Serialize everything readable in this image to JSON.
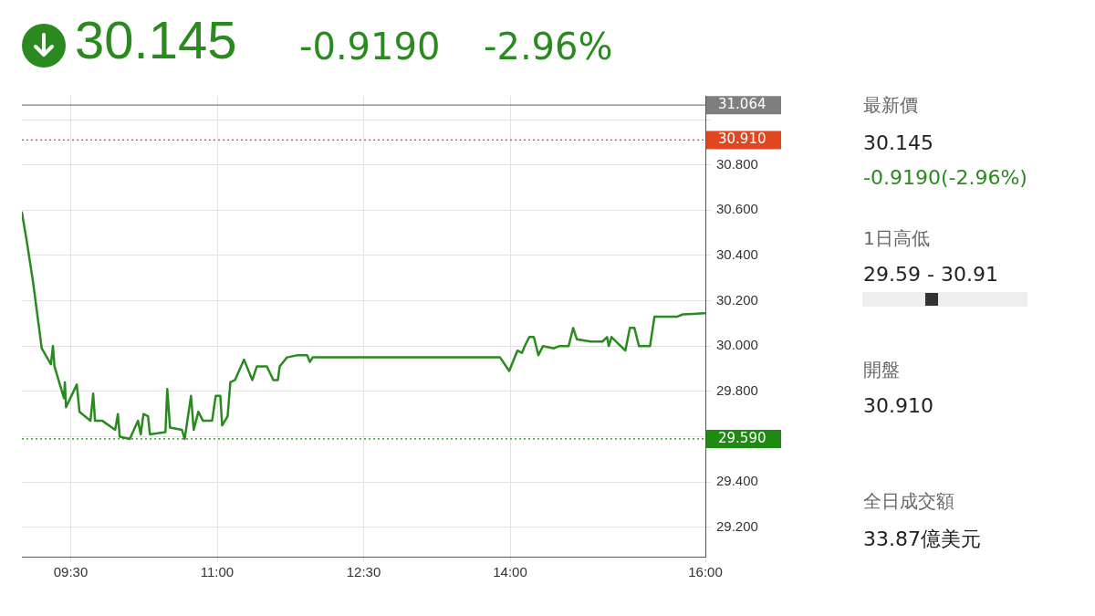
{
  "chart_data": {
    "type": "line",
    "title": "30.145",
    "annotations": [
      "-0.9190",
      "-2.96%",
      "最新價",
      "30.145",
      "-0.9190(-2.96%)",
      "1日高低",
      "29.59 - 30.91",
      "開盤",
      "30.910",
      "全日成交額",
      "33.87億美元"
    ],
    "x": [
      9.0,
      9.047,
      9.112,
      9.203,
      9.297,
      9.318,
      9.334,
      9.431,
      9.44,
      9.452,
      9.562,
      9.59,
      9.702,
      9.73,
      9.749,
      9.824,
      9.955,
      9.983,
      10.002,
      10.105,
      10.189,
      10.217,
      10.245,
      10.292,
      10.311,
      10.47,
      10.489,
      10.517,
      10.639,
      10.667,
      10.732,
      10.76,
      10.807,
      10.854,
      10.948,
      10.985,
      11.032,
      11.051,
      11.107,
      11.135,
      11.182,
      11.275,
      11.36,
      11.406,
      11.509,
      11.575,
      11.622,
      11.64,
      11.715,
      11.828,
      11.921,
      11.949,
      11.978,
      13.897,
      13.991,
      14.075,
      14.122,
      14.15,
      14.197,
      14.243,
      14.29,
      14.337,
      14.449,
      14.506,
      14.599,
      14.646,
      14.684,
      14.824,
      14.946,
      14.993,
      15.011,
      15.039,
      15.18,
      15.227,
      15.273,
      15.32,
      15.433,
      15.479,
      15.713,
      15.77,
      15.994
    ],
    "series": [
      {
        "color": "#2a8a1f",
        "values": [
          30.59,
          30.47,
          30.29,
          29.99,
          29.92,
          30.0,
          29.91,
          29.77,
          29.84,
          29.73,
          29.83,
          29.71,
          29.67,
          29.79,
          29.67,
          29.67,
          29.63,
          29.7,
          29.6,
          29.59,
          29.67,
          29.61,
          29.7,
          29.69,
          29.61,
          29.62,
          29.81,
          29.64,
          29.63,
          29.59,
          29.78,
          29.63,
          29.71,
          29.67,
          29.67,
          29.78,
          29.78,
          29.65,
          29.69,
          29.84,
          29.85,
          29.94,
          29.85,
          29.91,
          29.91,
          29.85,
          29.85,
          29.91,
          29.95,
          29.96,
          29.96,
          29.93,
          29.95,
          29.95,
          29.89,
          29.98,
          29.97,
          30.0,
          30.04,
          30.04,
          29.96,
          30.0,
          29.99,
          30.0,
          30.0,
          30.08,
          30.03,
          30.02,
          30.02,
          30.04,
          30.0,
          30.04,
          29.98,
          30.08,
          30.08,
          30.0,
          30.0,
          30.13,
          30.13,
          30.14,
          30.145
        ]
      }
    ],
    "xlim": [
      9,
      16
    ],
    "xticks": [
      {
        "value": 9.5,
        "label": "09:30"
      },
      {
        "value": 11,
        "label": "11:00"
      },
      {
        "value": 12.5,
        "label": "12:30"
      },
      {
        "value": 14,
        "label": "14:00"
      },
      {
        "value": 16,
        "label": "16:00"
      }
    ],
    "ylim": [
      29.07,
      31.105
    ],
    "yticks": [
      {
        "value": 29.2,
        "label": "29.200"
      },
      {
        "value": 29.4,
        "label": "29.400"
      },
      {
        "value": 29.6,
        "label": null
      },
      {
        "value": 29.8,
        "label": "29.800"
      },
      {
        "value": 30.0,
        "label": "30.000"
      },
      {
        "value": 30.2,
        "label": "30.200"
      },
      {
        "value": 30.4,
        "label": "30.400"
      },
      {
        "value": 30.6,
        "label": "30.600"
      },
      {
        "value": 30.8,
        "label": "30.800"
      },
      {
        "value": 31.0,
        "label": null
      }
    ],
    "ref_lines": [
      {
        "axis": "y",
        "value": 31.064,
        "label": "31.064",
        "color": "#7f7f7f",
        "line_style": "solid"
      },
      {
        "axis": "y",
        "value": 30.91,
        "label": "30.910",
        "color": "#e0461f",
        "line_style": "dotted"
      },
      {
        "axis": "y",
        "value": 29.59,
        "label": "29.590",
        "color": "#1f8a12",
        "line_style": "dotted"
      }
    ],
    "grid": true,
    "legend": false,
    "marker": "none",
    "line_style": "solid"
  }
}
